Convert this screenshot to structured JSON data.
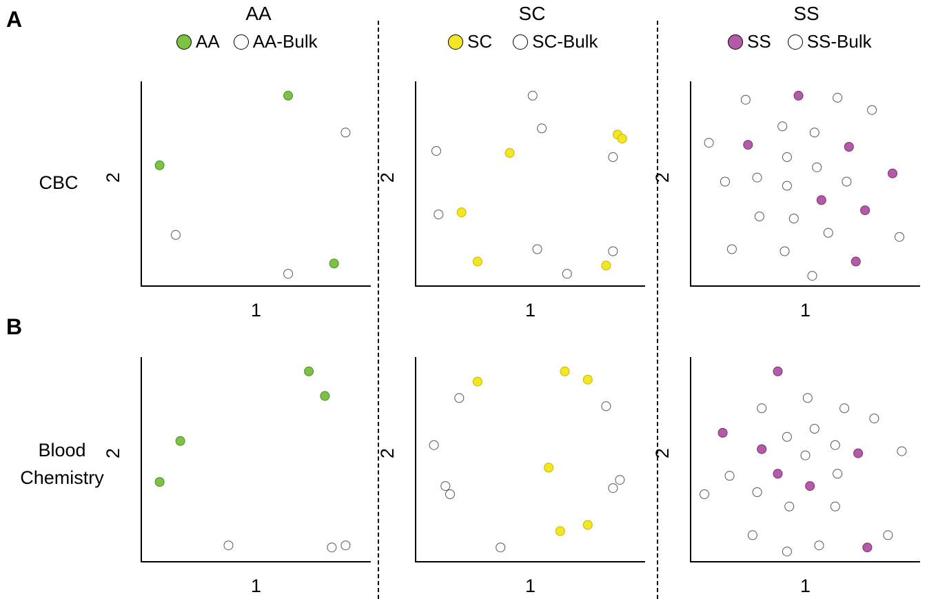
{
  "panels": {
    "a": "A",
    "b": "B"
  },
  "groups": [
    {
      "title": "AA",
      "legend_filled": "AA",
      "legend_bulk": "AA-Bulk",
      "color": "#7dc242"
    },
    {
      "title": "SC",
      "legend_filled": "SC",
      "legend_bulk": "SC-Bulk",
      "color": "#f3e622"
    },
    {
      "title": "SS",
      "legend_filled": "SS",
      "legend_bulk": "SS-Bulk",
      "color": "#b35aa8"
    }
  ],
  "rows": [
    {
      "label_line1": "CBC",
      "label_line2": ""
    },
    {
      "label_line1": "Blood",
      "label_line2": "Chemistry"
    }
  ],
  "chart_data": [
    {
      "type": "scatter",
      "row": "CBC",
      "group": "AA",
      "xlabel": "1",
      "ylabel": "2",
      "xlim": [
        0,
        1
      ],
      "ylim": [
        0,
        1
      ],
      "series": [
        {
          "name": "AA",
          "kind": "filled",
          "points": [
            [
              0.08,
              0.59
            ],
            [
              0.64,
              0.93
            ],
            [
              0.84,
              0.11
            ]
          ]
        },
        {
          "name": "AA-Bulk",
          "kind": "bulk",
          "points": [
            [
              0.15,
              0.25
            ],
            [
              0.64,
              0.06
            ],
            [
              0.89,
              0.75
            ]
          ]
        }
      ]
    },
    {
      "type": "scatter",
      "row": "CBC",
      "group": "SC",
      "xlabel": "1",
      "ylabel": "2",
      "xlim": [
        0,
        1
      ],
      "ylim": [
        0,
        1
      ],
      "series": [
        {
          "name": "SC",
          "kind": "filled",
          "points": [
            [
              0.41,
              0.65
            ],
            [
              0.2,
              0.36
            ],
            [
              0.27,
              0.12
            ],
            [
              0.88,
              0.74
            ],
            [
              0.9,
              0.72
            ],
            [
              0.83,
              0.1
            ]
          ]
        },
        {
          "name": "SC-Bulk",
          "kind": "bulk",
          "points": [
            [
              0.51,
              0.93
            ],
            [
              0.55,
              0.77
            ],
            [
              0.09,
              0.66
            ],
            [
              0.86,
              0.63
            ],
            [
              0.1,
              0.35
            ],
            [
              0.53,
              0.18
            ],
            [
              0.86,
              0.17
            ],
            [
              0.66,
              0.06
            ]
          ]
        }
      ]
    },
    {
      "type": "scatter",
      "row": "CBC",
      "group": "SS",
      "xlabel": "1",
      "ylabel": "2",
      "xlim": [
        0,
        1
      ],
      "ylim": [
        0,
        1
      ],
      "series": [
        {
          "name": "SS",
          "kind": "filled",
          "points": [
            [
              0.47,
              0.93
            ],
            [
              0.25,
              0.69
            ],
            [
              0.69,
              0.68
            ],
            [
              0.88,
              0.55
            ],
            [
              0.57,
              0.42
            ],
            [
              0.76,
              0.37
            ],
            [
              0.72,
              0.12
            ]
          ]
        },
        {
          "name": "SS-Bulk",
          "kind": "bulk",
          "points": [
            [
              0.24,
              0.91
            ],
            [
              0.64,
              0.92
            ],
            [
              0.79,
              0.86
            ],
            [
              0.4,
              0.78
            ],
            [
              0.54,
              0.75
            ],
            [
              0.08,
              0.7
            ],
            [
              0.42,
              0.63
            ],
            [
              0.55,
              0.58
            ],
            [
              0.15,
              0.51
            ],
            [
              0.29,
              0.53
            ],
            [
              0.42,
              0.49
            ],
            [
              0.68,
              0.51
            ],
            [
              0.3,
              0.34
            ],
            [
              0.45,
              0.33
            ],
            [
              0.6,
              0.26
            ],
            [
              0.91,
              0.24
            ],
            [
              0.18,
              0.18
            ],
            [
              0.41,
              0.17
            ],
            [
              0.53,
              0.05
            ]
          ]
        }
      ]
    },
    {
      "type": "scatter",
      "row": "Blood Chemistry",
      "group": "AA",
      "xlabel": "1",
      "ylabel": "2",
      "xlim": [
        0,
        1
      ],
      "ylim": [
        0,
        1
      ],
      "series": [
        {
          "name": "AA",
          "kind": "filled",
          "points": [
            [
              0.73,
              0.93
            ],
            [
              0.8,
              0.81
            ],
            [
              0.17,
              0.59
            ],
            [
              0.08,
              0.39
            ]
          ]
        },
        {
          "name": "AA-Bulk",
          "kind": "bulk",
          "points": [
            [
              0.38,
              0.08
            ],
            [
              0.83,
              0.07
            ],
            [
              0.89,
              0.08
            ]
          ]
        }
      ]
    },
    {
      "type": "scatter",
      "row": "Blood Chemistry",
      "group": "SC",
      "xlabel": "1",
      "ylabel": "2",
      "xlim": [
        0,
        1
      ],
      "ylim": [
        0,
        1
      ],
      "series": [
        {
          "name": "SC",
          "kind": "filled",
          "points": [
            [
              0.27,
              0.88
            ],
            [
              0.65,
              0.93
            ],
            [
              0.75,
              0.89
            ],
            [
              0.58,
              0.46
            ],
            [
              0.63,
              0.15
            ],
            [
              0.75,
              0.18
            ]
          ]
        },
        {
          "name": "SC-Bulk",
          "kind": "bulk",
          "points": [
            [
              0.19,
              0.8
            ],
            [
              0.83,
              0.76
            ],
            [
              0.08,
              0.57
            ],
            [
              0.13,
              0.37
            ],
            [
              0.15,
              0.33
            ],
            [
              0.89,
              0.4
            ],
            [
              0.86,
              0.36
            ],
            [
              0.37,
              0.07
            ]
          ]
        }
      ]
    },
    {
      "type": "scatter",
      "row": "Blood Chemistry",
      "group": "SS",
      "xlabel": "1",
      "ylabel": "2",
      "xlim": [
        0,
        1
      ],
      "ylim": [
        0,
        1
      ],
      "series": [
        {
          "name": "SS",
          "kind": "filled",
          "points": [
            [
              0.38,
              0.93
            ],
            [
              0.14,
              0.63
            ],
            [
              0.31,
              0.55
            ],
            [
              0.73,
              0.53
            ],
            [
              0.38,
              0.43
            ],
            [
              0.52,
              0.37
            ],
            [
              0.77,
              0.07
            ]
          ]
        },
        {
          "name": "SS-Bulk",
          "kind": "bulk",
          "points": [
            [
              0.51,
              0.8
            ],
            [
              0.31,
              0.75
            ],
            [
              0.67,
              0.75
            ],
            [
              0.8,
              0.7
            ],
            [
              0.42,
              0.61
            ],
            [
              0.54,
              0.65
            ],
            [
              0.63,
              0.57
            ],
            [
              0.92,
              0.54
            ],
            [
              0.5,
              0.52
            ],
            [
              0.17,
              0.42
            ],
            [
              0.64,
              0.43
            ],
            [
              0.29,
              0.34
            ],
            [
              0.06,
              0.33
            ],
            [
              0.43,
              0.27
            ],
            [
              0.63,
              0.27
            ],
            [
              0.27,
              0.13
            ],
            [
              0.86,
              0.13
            ],
            [
              0.42,
              0.05
            ],
            [
              0.56,
              0.08
            ]
          ]
        }
      ]
    }
  ]
}
